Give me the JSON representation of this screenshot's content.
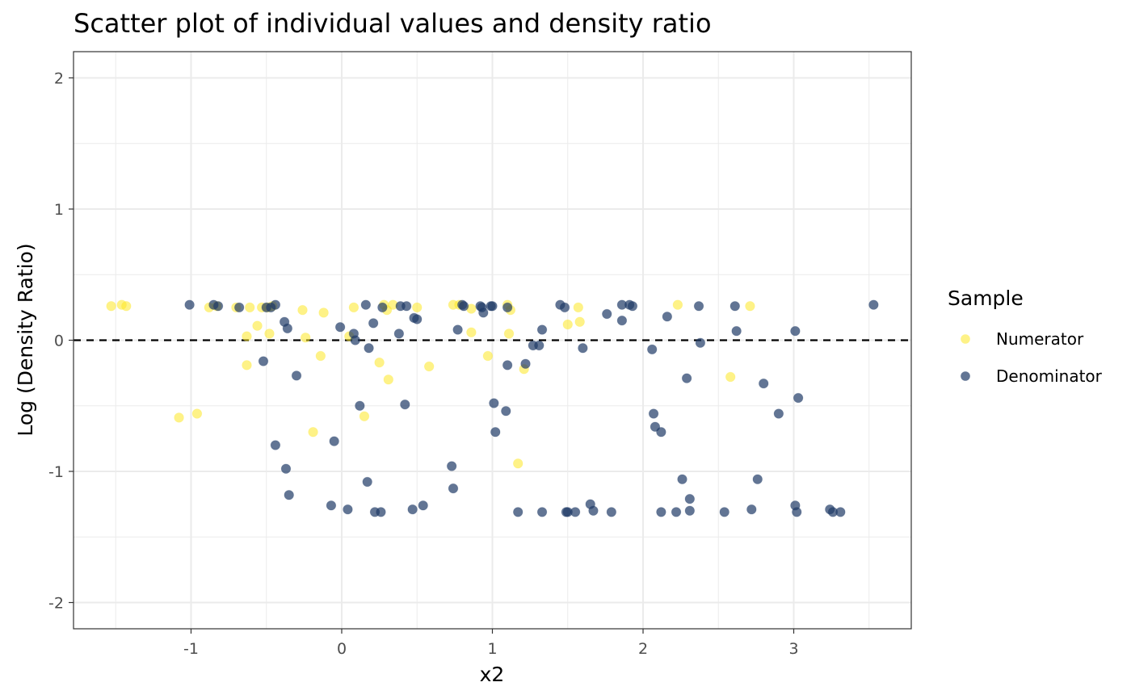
{
  "chart_data": {
    "type": "scatter",
    "title": "Scatter plot of individual values and density ratio",
    "xlabel": "x2",
    "ylabel": "Log (Density Ratio)",
    "xlim": [
      -1.78,
      3.78
    ],
    "ylim": [
      -2.2,
      2.2
    ],
    "x_ticks": [
      -1,
      0,
      1,
      2,
      3
    ],
    "y_ticks": [
      -2,
      -1,
      0,
      1,
      2
    ],
    "x_tick_labels": [
      "-1",
      "0",
      "1",
      "2",
      "3"
    ],
    "y_tick_labels": [
      "-2",
      "-1",
      "0",
      "1",
      "2"
    ],
    "grid": true,
    "reference_line": {
      "y": 0,
      "style": "dashed",
      "color": "#000000"
    },
    "legend": {
      "title": "Sample",
      "position": "right"
    },
    "series": [
      {
        "name": "Numerator",
        "color": "#fde725",
        "x": [
          -1.53,
          -1.46,
          -1.43,
          -0.88,
          -0.83,
          -0.7,
          -0.61,
          -0.53,
          -0.49,
          -0.46,
          -0.63,
          -0.56,
          -0.48,
          -0.63,
          -0.26,
          -0.24,
          -0.12,
          -0.14,
          -0.19,
          -1.08,
          -0.96,
          0.08,
          0.05,
          0.28,
          0.3,
          0.34,
          0.5,
          0.31,
          0.25,
          0.15,
          0.58,
          0.74,
          0.78,
          0.86,
          0.86,
          0.97,
          1.1,
          1.12,
          1.11,
          1.21,
          1.17,
          1.5,
          1.57,
          1.58,
          2.23,
          2.58,
          2.71
        ],
        "y": [
          0.26,
          0.27,
          0.26,
          0.25,
          0.26,
          0.25,
          0.25,
          0.25,
          0.25,
          0.26,
          0.03,
          0.11,
          0.05,
          -0.19,
          0.23,
          0.02,
          0.21,
          -0.12,
          -0.7,
          -0.59,
          -0.56,
          0.25,
          0.03,
          0.27,
          0.23,
          0.27,
          0.25,
          -0.3,
          -0.17,
          -0.58,
          -0.2,
          0.27,
          0.27,
          0.24,
          0.06,
          -0.12,
          0.27,
          0.23,
          0.05,
          -0.22,
          -0.94,
          0.12,
          0.25,
          0.14,
          0.27,
          -0.28,
          0.26
        ],
        "jitter_offsets": [
          0,
          0
        ]
      },
      {
        "name": "Denominator",
        "color": "#1f3a66",
        "x": [
          -1.01,
          -0.85,
          -0.82,
          -0.68,
          -0.5,
          -0.47,
          -0.44,
          -0.38,
          -0.36,
          -0.52,
          -0.3,
          -0.44,
          -0.37,
          -0.35,
          -0.07,
          -0.05,
          0.04,
          -0.01,
          0.08,
          0.09,
          0.16,
          0.18,
          0.21,
          0.12,
          0.17,
          0.22,
          0.26,
          0.27,
          0.38,
          0.39,
          0.43,
          0.48,
          0.5,
          0.47,
          0.54,
          0.42,
          0.77,
          0.8,
          0.81,
          0.73,
          0.74,
          0.92,
          0.93,
          0.94,
          0.99,
          1.0,
          1.01,
          1.02,
          1.09,
          1.1,
          1.1,
          1.17,
          1.22,
          1.27,
          1.31,
          1.33,
          1.33,
          1.45,
          1.48,
          1.49,
          1.5,
          1.55,
          1.6,
          1.65,
          1.67,
          1.76,
          1.79,
          1.86,
          1.86,
          1.91,
          1.93,
          2.06,
          2.07,
          2.08,
          2.12,
          2.12,
          2.16,
          2.22,
          2.26,
          2.29,
          2.31,
          2.31,
          2.37,
          2.38,
          2.54,
          2.61,
          2.62,
          2.72,
          2.76,
          2.8,
          2.9,
          3.01,
          3.02,
          3.01,
          3.03,
          3.24,
          3.26,
          3.31,
          3.53
        ],
        "y": [
          0.27,
          0.27,
          0.26,
          0.25,
          0.25,
          0.25,
          0.27,
          0.14,
          0.09,
          -0.16,
          -0.27,
          -0.8,
          -0.98,
          -1.18,
          -1.26,
          -0.77,
          -1.29,
          0.1,
          0.05,
          0.0,
          0.27,
          -0.06,
          0.13,
          -0.5,
          -1.08,
          -1.31,
          -1.31,
          0.25,
          0.05,
          0.26,
          0.26,
          0.17,
          0.16,
          -1.29,
          -1.26,
          -0.49,
          0.08,
          0.27,
          0.26,
          -0.96,
          -1.13,
          0.26,
          0.25,
          0.21,
          0.26,
          0.26,
          -0.48,
          -0.7,
          -0.54,
          -0.19,
          0.25,
          -1.31,
          -0.18,
          -0.04,
          -0.04,
          0.08,
          -1.31,
          0.27,
          0.25,
          -1.31,
          -1.31,
          -1.31,
          -0.06,
          -1.25,
          -1.3,
          0.2,
          -1.31,
          0.27,
          0.15,
          0.27,
          0.26,
          -0.07,
          -0.56,
          -0.66,
          -0.7,
          -1.31,
          0.18,
          -1.31,
          -1.06,
          -0.29,
          -1.21,
          -1.3,
          0.26,
          -0.02,
          -1.31,
          0.26,
          0.07,
          -1.29,
          -1.06,
          -0.33,
          -0.56,
          -1.26,
          -1.31,
          0.07,
          -0.44,
          -1.29,
          -1.31,
          -1.31,
          0.27
        ],
        "jitter_offsets": [
          0,
          0
        ]
      }
    ]
  }
}
